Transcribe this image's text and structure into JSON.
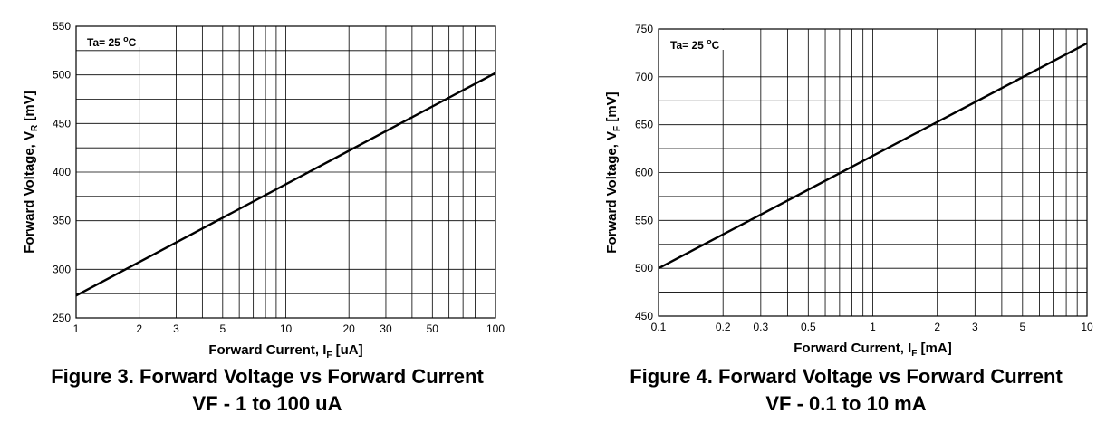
{
  "chart_data": [
    {
      "type": "line",
      "xscale": "log",
      "x": [
        1,
        100
      ],
      "y": [
        273,
        502
      ],
      "xlim": [
        1,
        100
      ],
      "ylim": [
        250,
        550
      ],
      "x_ticks": [
        1,
        2,
        3,
        5,
        10,
        20,
        30,
        50,
        100
      ],
      "x_tick_labels": [
        "1",
        "2",
        "3",
        "5",
        "10",
        "20",
        "30",
        "50",
        "100"
      ],
      "y_ticks": [
        250,
        300,
        350,
        400,
        450,
        500,
        550
      ],
      "y_tick_labels": [
        "250",
        "300",
        "350",
        "400",
        "450",
        "500",
        "550"
      ],
      "xlabel": {
        "main": "Forward Current, I",
        "sub": "F",
        "unit": " [uA]"
      },
      "ylabel": {
        "main": "Forward Voltage, V",
        "sub": "R",
        "unit": " [mV]"
      },
      "annotation": {
        "prefix": "Ta= 25 ",
        "sup": "o",
        "suffix": "C"
      },
      "grid": true,
      "caption": {
        "line1": "Figure 3. Forward Voltage vs Forward Current",
        "line2": "VF - 1 to 100 uA"
      }
    },
    {
      "type": "line",
      "xscale": "log",
      "x": [
        0.1,
        10
      ],
      "y": [
        500,
        735
      ],
      "xlim": [
        0.1,
        10
      ],
      "ylim": [
        450,
        750
      ],
      "x_ticks": [
        0.1,
        0.2,
        0.3,
        0.5,
        1,
        2,
        3,
        5,
        10
      ],
      "x_tick_labels": [
        "0.1",
        "0.2",
        "0.3",
        "0.5",
        "1",
        "2",
        "3",
        "5",
        "10"
      ],
      "y_ticks": [
        450,
        500,
        550,
        600,
        650,
        700,
        750
      ],
      "y_tick_labels": [
        "450",
        "500",
        "550",
        "600",
        "650",
        "700",
        "750"
      ],
      "xlabel": {
        "main": "Forward Current, I",
        "sub": "F",
        "unit": " [mA]"
      },
      "ylabel": {
        "main": "Forward Voltage, V",
        "sub": "F",
        "unit": " [mV]"
      },
      "annotation": {
        "prefix": "Ta= 25 ",
        "sup": "o",
        "suffix": "C"
      },
      "grid": true,
      "caption": {
        "line1": "Figure 4. Forward Voltage vs Forward Current",
        "line2": "VF - 0.1 to 10 mA"
      }
    }
  ]
}
